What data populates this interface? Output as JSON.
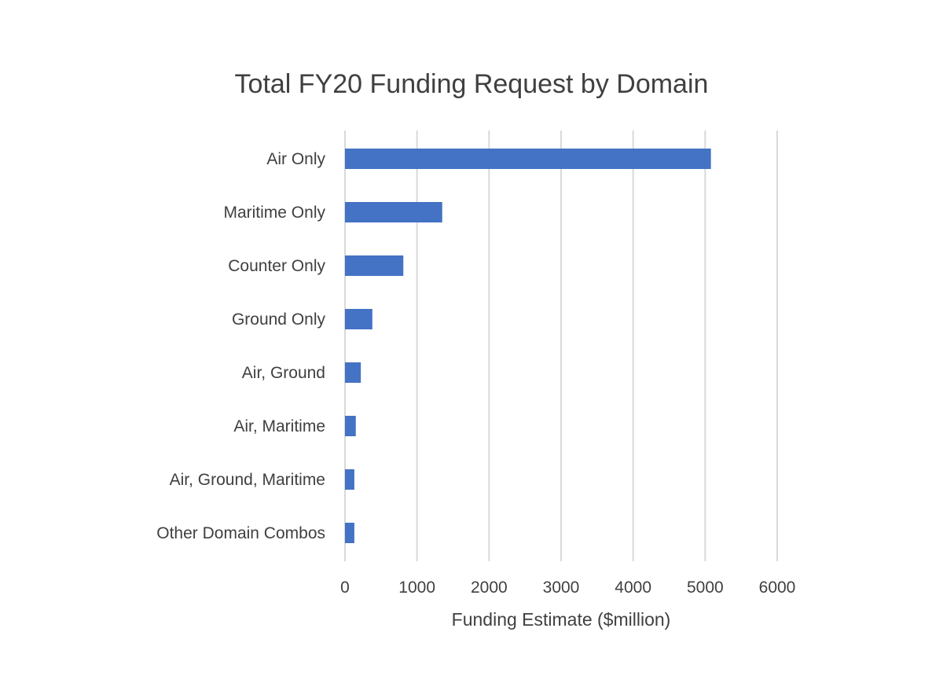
{
  "chart_data": {
    "type": "bar",
    "orientation": "horizontal",
    "title": "Total FY20 Funding Request by Domain",
    "xlabel": "Funding Estimate ($million)",
    "ylabel": "",
    "categories": [
      "Air Only",
      "Maritime Only",
      "Counter Only",
      "Ground Only",
      "Air, Ground",
      "Air, Maritime",
      "Air, Ground, Maritime",
      "Other Domain Combos"
    ],
    "values": [
      5080,
      1350,
      810,
      380,
      220,
      150,
      130,
      130
    ],
    "xlim": [
      0,
      6000
    ],
    "xticks": [
      "0",
      "1000",
      "2000",
      "3000",
      "4000",
      "5000",
      "6000"
    ],
    "grid": "vertical",
    "legend": "none",
    "bar_color": "#4472C4",
    "grid_color": "#D9D9D9"
  }
}
